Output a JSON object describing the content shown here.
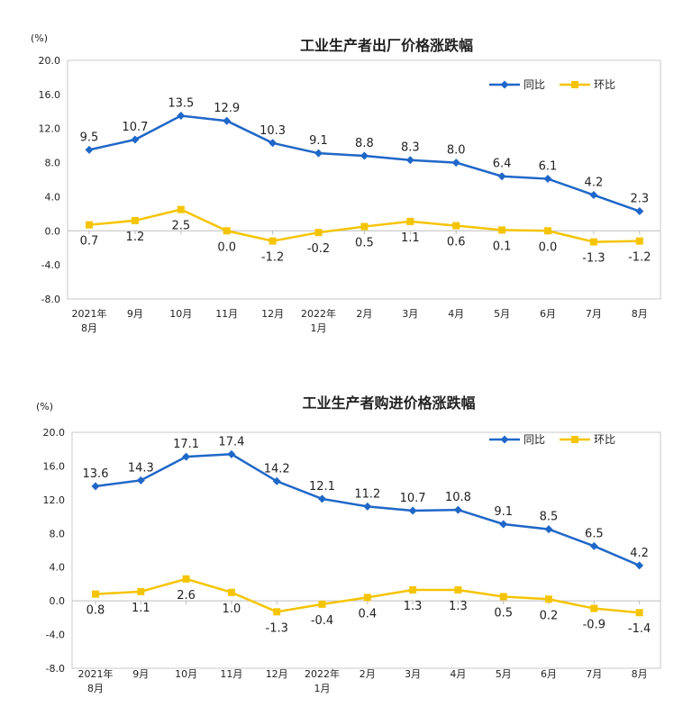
{
  "chart_data": [
    {
      "type": "line",
      "title": "工业生产者出厂价格涨跌幅",
      "unit": "(%)",
      "categories": [
        [
          "2021年",
          "8月"
        ],
        [
          "9月"
        ],
        [
          "10月"
        ],
        [
          "11月"
        ],
        [
          "12月"
        ],
        [
          "2022年",
          "1月"
        ],
        [
          "2月"
        ],
        [
          "3月"
        ],
        [
          "4月"
        ],
        [
          "5月"
        ],
        [
          "6月"
        ],
        [
          "7月"
        ],
        [
          "8月"
        ]
      ],
      "y_ticks": [
        "20.0",
        "16.0",
        "12.0",
        "8.0",
        "4.0",
        "0.0",
        "-4.0",
        "-8.0"
      ],
      "ylim": [
        -8,
        20
      ],
      "legend_position": "top-right",
      "series": [
        {
          "name": "同比",
          "color": "#1f67c8",
          "marker": "diamond",
          "values": [
            9.5,
            10.7,
            13.5,
            12.9,
            10.3,
            9.1,
            8.8,
            8.3,
            8.0,
            6.4,
            6.1,
            4.2,
            2.3
          ],
          "labels": [
            "9.5",
            "10.7",
            "13.5",
            "12.9",
            "10.3",
            "9.1",
            "8.8",
            "8.3",
            "8.0",
            "6.4",
            "6.1",
            "4.2",
            "2.3"
          ]
        },
        {
          "name": "环比",
          "color": "#f5c400",
          "marker": "square",
          "values": [
            0.7,
            1.2,
            2.5,
            0.0,
            -1.2,
            -0.2,
            0.5,
            1.1,
            0.6,
            0.1,
            0.0,
            -1.3,
            -1.2
          ],
          "labels": [
            "0.7",
            "1.2",
            "2.5",
            "0.0",
            "-1.2",
            "-0.2",
            "0.5",
            "1.1",
            "0.6",
            "0.1",
            "0.0",
            "-1.3",
            "-1.2"
          ]
        }
      ]
    },
    {
      "type": "line",
      "title": "工业生产者购进价格涨跌幅",
      "unit": "(%)",
      "categories": [
        [
          "2021年",
          "8月"
        ],
        [
          "9月"
        ],
        [
          "10月"
        ],
        [
          "11月"
        ],
        [
          "12月"
        ],
        [
          "2022年",
          "1月"
        ],
        [
          "2月"
        ],
        [
          "3月"
        ],
        [
          "4月"
        ],
        [
          "5月"
        ],
        [
          "6月"
        ],
        [
          "7月"
        ],
        [
          "8月"
        ]
      ],
      "y_ticks": [
        "20.0",
        "16.0",
        "12.0",
        "8.0",
        "4.0",
        "0.0",
        "-4.0",
        "-8.0"
      ],
      "ylim": [
        -8,
        20
      ],
      "legend_position": "top-right",
      "series": [
        {
          "name": "同比",
          "color": "#1f67c8",
          "marker": "diamond",
          "values": [
            13.6,
            14.3,
            17.1,
            17.4,
            14.2,
            12.1,
            11.2,
            10.7,
            10.8,
            9.1,
            8.5,
            6.5,
            4.2
          ],
          "labels": [
            "13.6",
            "14.3",
            "17.1",
            "17.4",
            "14.2",
            "12.1",
            "11.2",
            "10.7",
            "10.8",
            "9.1",
            "8.5",
            "6.5",
            "4.2"
          ]
        },
        {
          "name": "环比",
          "color": "#f5c400",
          "marker": "square",
          "values": [
            0.8,
            1.1,
            2.6,
            1.0,
            -1.3,
            -0.4,
            0.4,
            1.3,
            1.3,
            0.5,
            0.2,
            -0.9,
            -1.4
          ],
          "labels": [
            "0.8",
            "1.1",
            "2.6",
            "1.0",
            "-1.3",
            "-0.4",
            "0.4",
            "1.3",
            "1.3",
            "0.5",
            "0.2",
            "-0.9",
            "-1.4"
          ]
        }
      ]
    }
  ]
}
